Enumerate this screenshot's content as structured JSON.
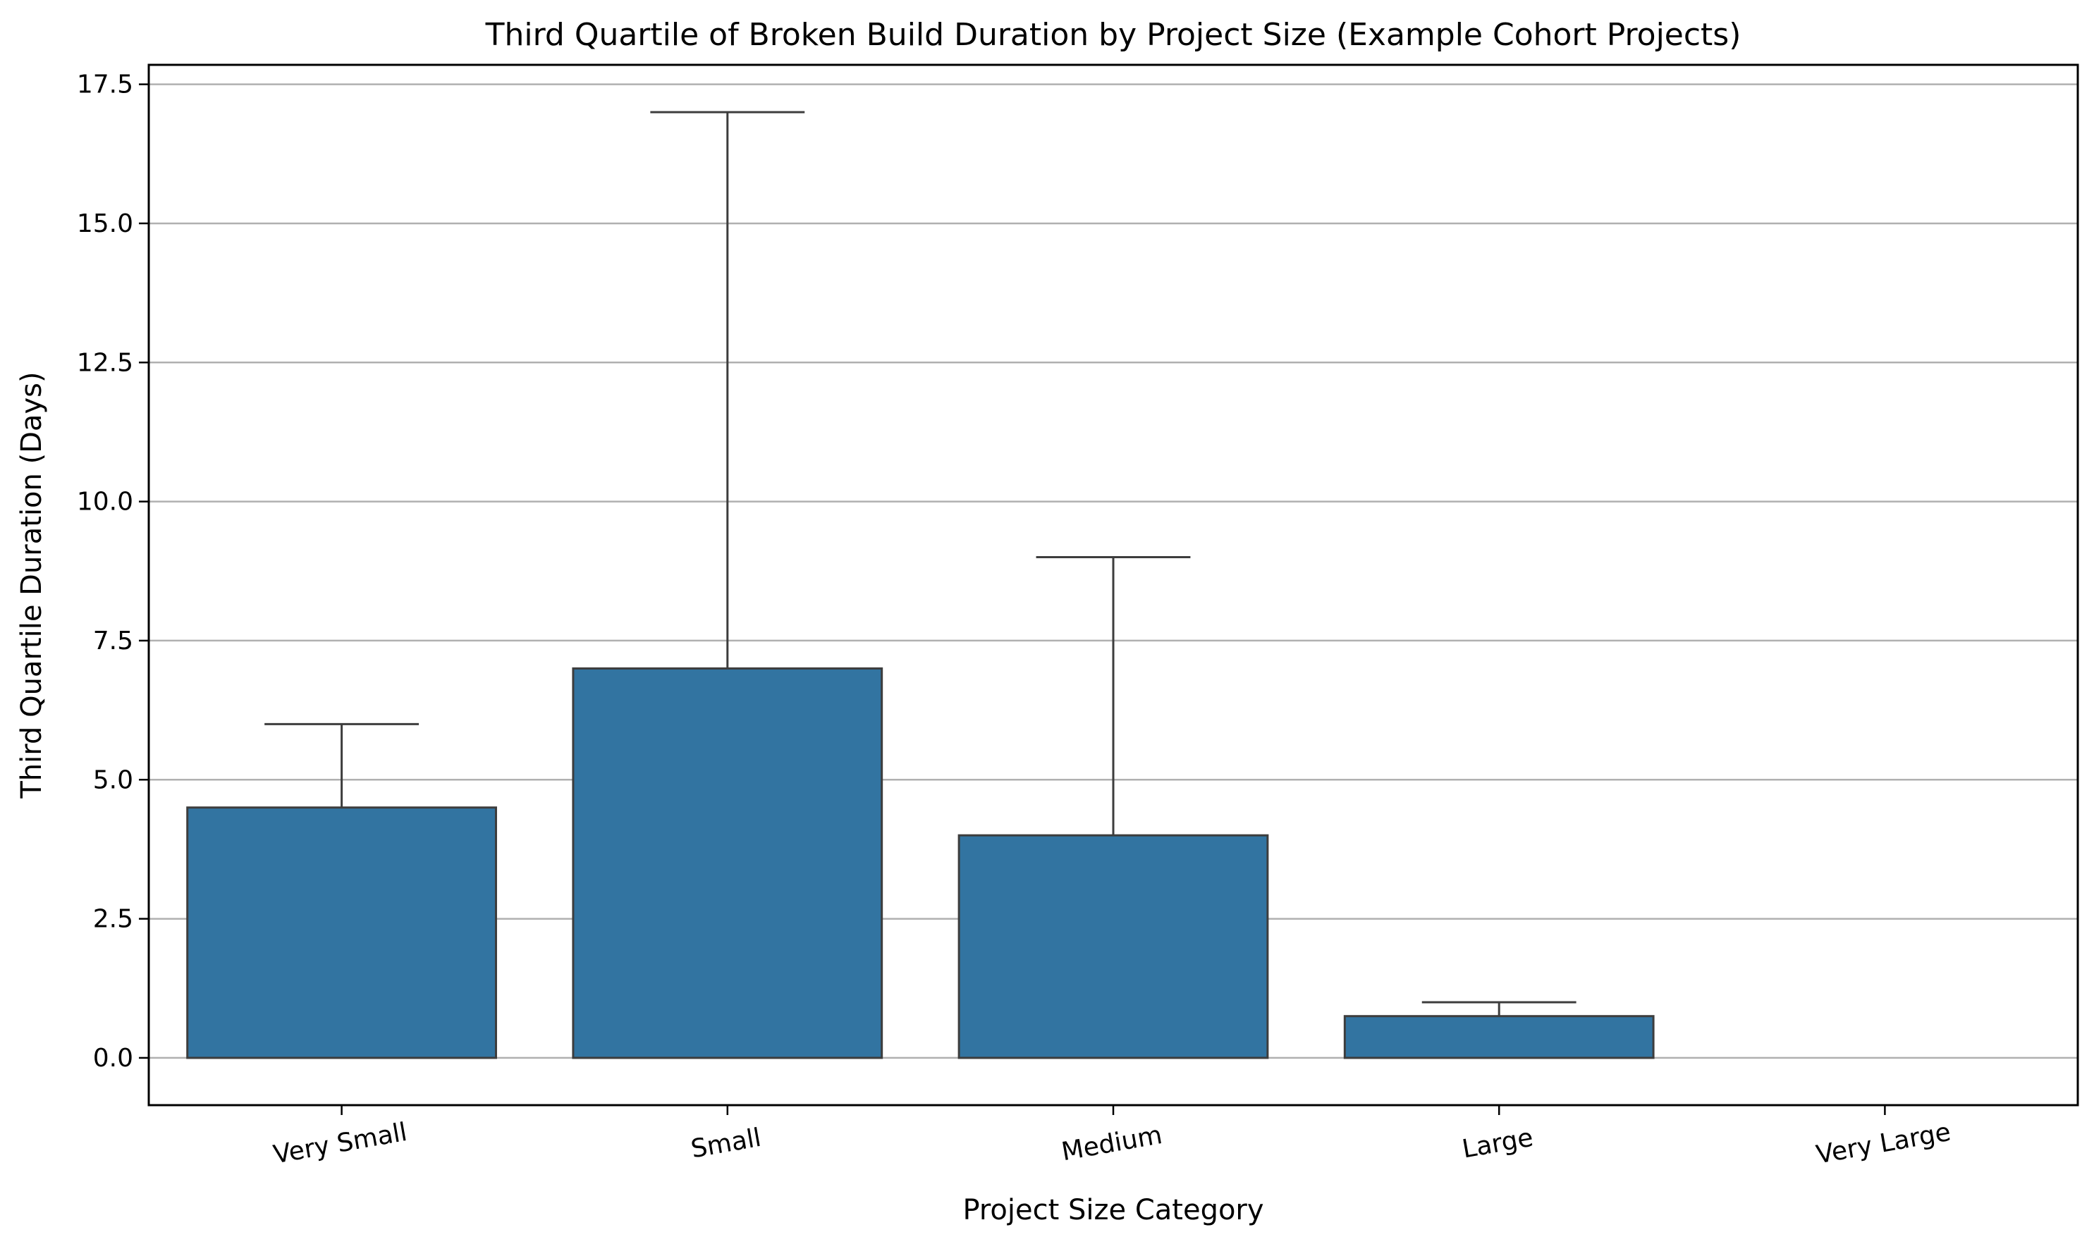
{
  "chart_data": {
    "type": "bar",
    "title": "Third Quartile of Broken Build Duration by Project Size (Example Cohort Projects)",
    "xlabel": "Project Size Category",
    "ylabel": "Third Quartile Duration (Days)",
    "categories": [
      "Very Small",
      "Small",
      "Medium",
      "Large",
      "Very Large"
    ],
    "values": [
      4.5,
      7.0,
      4.0,
      0.75,
      null
    ],
    "error_upper": [
      6.0,
      17.0,
      9.0,
      1.0,
      null
    ],
    "ylim": [
      -0.85,
      17.85
    ],
    "yticks": [
      0.0,
      2.5,
      5.0,
      7.5,
      10.0,
      12.5,
      15.0,
      17.5
    ],
    "ytick_labels": [
      "0.0",
      "2.5",
      "5.0",
      "7.5",
      "10.0",
      "12.5",
      "15.0",
      "17.5"
    ],
    "grid": "horizontal",
    "colors": {
      "bar": "#3274a1",
      "edge": "#3d3d3d",
      "grid": "#b0b0b0"
    }
  }
}
